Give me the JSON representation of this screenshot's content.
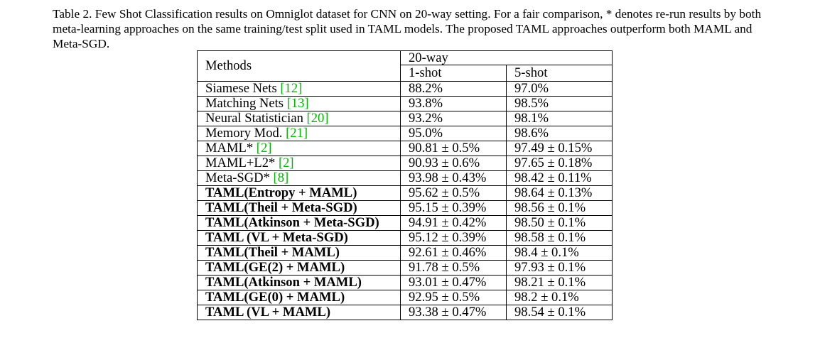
{
  "caption": "Table 2. Few Shot Classification results on Omniglot dataset for CNN on 20-way setting. For a fair comparison, * denotes re-run results by both meta-learning approaches on the same training/test split used in TAML models. The proposed TAML approaches outperform both MAML and Meta-SGD.",
  "table": {
    "methods_header": "Methods",
    "group_header": "20-way",
    "sub_headers": [
      "1-shot",
      "5-shot"
    ],
    "rows": [
      {
        "method": "Siamese Nets ",
        "ref": "[12]",
        "one_shot": "88.2%",
        "five_shot": "97.0%",
        "bold_method": false,
        "bold_one": false,
        "bold_five": false
      },
      {
        "method": "Matching Nets ",
        "ref": "[13]",
        "one_shot": "93.8%",
        "five_shot": "98.5%",
        "bold_method": false,
        "bold_one": false,
        "bold_five": false
      },
      {
        "method": "Neural Statistician ",
        "ref": "[20]",
        "one_shot": "93.2%",
        "five_shot": "98.1%",
        "bold_method": false,
        "bold_one": false,
        "bold_five": false
      },
      {
        "method": "Memory Mod. ",
        "ref": "[21]",
        "one_shot": "95.0%",
        "five_shot": "98.6%",
        "bold_method": false,
        "bold_one": false,
        "bold_five": false
      },
      {
        "method": "MAML* ",
        "ref": "[2]",
        "one_shot": "90.81 ± 0.5%",
        "five_shot": "97.49 ± 0.15%",
        "bold_method": false,
        "bold_one": false,
        "bold_five": false
      },
      {
        "method": "MAML+L2* ",
        "ref": "[2]",
        "one_shot": "90.93 ± 0.6%",
        "five_shot": "97.65 ± 0.18%",
        "bold_method": false,
        "bold_one": false,
        "bold_five": false
      },
      {
        "method": "Meta-SGD* ",
        "ref": "[8]",
        "one_shot": "93.98 ± 0.43%",
        "five_shot": "98.42 ± 0.11%",
        "bold_method": false,
        "bold_one": false,
        "bold_five": false
      },
      {
        "method": "TAML(Entropy + MAML)",
        "ref": "",
        "one_shot": "95.62 ± 0.5%",
        "five_shot": "98.64 ± 0.13%",
        "bold_method": true,
        "bold_one": true,
        "bold_five": true
      },
      {
        "method": "TAML(Theil + Meta-SGD)",
        "ref": "",
        "one_shot": "95.15 ± 0.39%",
        "five_shot": "98.56 ± 0.1%",
        "bold_method": true,
        "bold_one": true,
        "bold_five": true
      },
      {
        "method": "TAML(Atkinson + Meta-SGD)",
        "ref": "",
        "one_shot": "94.91 ± 0.42%",
        "five_shot": "98.50 ± 0.1%",
        "bold_method": true,
        "bold_one": false,
        "bold_five": false
      },
      {
        "method": "TAML (VL + Meta-SGD)",
        "ref": "",
        "one_shot": "95.12 ± 0.39%",
        "five_shot": "98.58 ± 0.1%",
        "bold_method": true,
        "bold_one": true,
        "bold_five": true
      },
      {
        "method": "TAML(Theil + MAML)",
        "ref": "",
        "one_shot": "92.61 ± 0.46%",
        "five_shot": "98.4 ± 0.1%",
        "bold_method": true,
        "bold_one": false,
        "bold_five": false
      },
      {
        "method": "TAML(GE(2) + MAML)",
        "ref": "",
        "one_shot": "91.78 ± 0.5%",
        "five_shot": "97.93 ± 0.1%",
        "bold_method": true,
        "bold_one": false,
        "bold_five": false
      },
      {
        "method": "TAML(Atkinson + MAML)",
        "ref": "",
        "one_shot": "93.01 ± 0.47%",
        "five_shot": "98.21 ± 0.1%",
        "bold_method": true,
        "bold_one": false,
        "bold_five": false
      },
      {
        "method": "TAML(GE(0) + MAML)",
        "ref": "",
        "one_shot": "92.95 ± 0.5%",
        "five_shot": "98.2 ± 0.1%",
        "bold_method": true,
        "bold_one": false,
        "bold_five": false
      },
      {
        "method": "TAML (VL + MAML)",
        "ref": "",
        "one_shot": "93.38 ± 0.47%",
        "five_shot": "98.54 ± 0.1%",
        "bold_method": true,
        "bold_one": false,
        "bold_five": false
      }
    ]
  },
  "colors": {
    "reference_link": "#00b800",
    "text": "#000000"
  }
}
